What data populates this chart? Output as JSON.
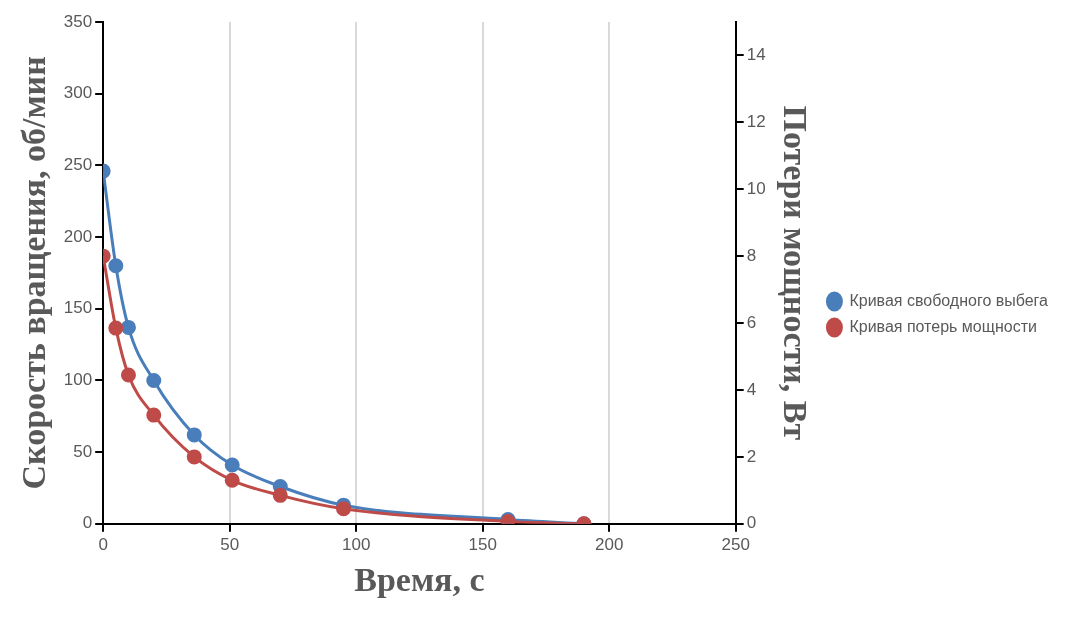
{
  "chart_data": {
    "type": "line",
    "xlabel": "Время, с",
    "ylabel": "Скорость вращения, об/мин",
    "y2label": "Потери мощности, Вт",
    "xlim": [
      0,
      250
    ],
    "xticks": [
      0,
      50,
      100,
      150,
      200,
      250
    ],
    "ylim": [
      0,
      350
    ],
    "yticks": [
      0,
      50,
      100,
      150,
      200,
      250,
      300,
      350
    ],
    "y2lim": [
      0,
      15
    ],
    "y2ticks": [
      0,
      2,
      4,
      6,
      8,
      10,
      12,
      14
    ],
    "grid": "x",
    "legend": "right",
    "marker": "circle",
    "line_style": "solid",
    "series": [
      {
        "name": "Кривая свободного выбега",
        "color": "#4a7ebb",
        "x": [
          0,
          5,
          10,
          20,
          36,
          51,
          70,
          95,
          160,
          190
        ],
        "values": [
          246,
          180,
          137,
          100,
          62,
          41,
          26,
          13,
          3,
          0
        ]
      },
      {
        "name": "Кривая потерь мощности",
        "color": "#be4b48",
        "axis": "y2",
        "x": [
          0,
          5,
          10,
          20,
          36,
          51,
          70,
          95,
          160,
          190
        ],
        "values": [
          8,
          5.85,
          4.45,
          3.25,
          2,
          1.3,
          0.85,
          0.45,
          0.07,
          0
        ]
      }
    ]
  }
}
